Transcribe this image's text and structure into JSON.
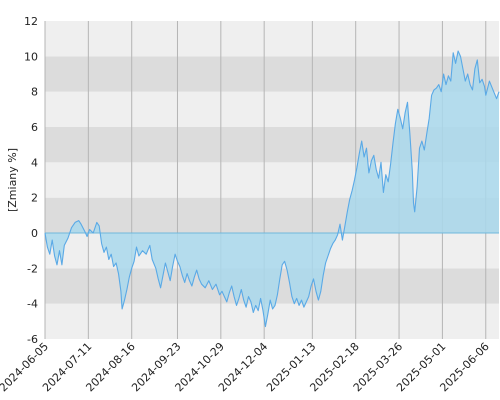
{
  "chart_data": {
    "type": "area",
    "ylabel": "[Zmiany %]",
    "xlabel": "",
    "ylim": [
      -6,
      12
    ],
    "xlim": [
      "2024-06-05",
      "2025-06-17"
    ],
    "y_ticks": [
      -6,
      -4,
      -2,
      0,
      2,
      4,
      6,
      8,
      10,
      12
    ],
    "y_tick_labels": [
      "-6",
      "-4",
      "-2",
      "0",
      "2",
      "4",
      "6",
      "8",
      "10",
      "12"
    ],
    "x_tick_labels": [
      "2024-06-05",
      "2024-07-11",
      "2024-08-16",
      "2024-09-23",
      "2024-10-29",
      "2024-12-04",
      "2025-01-13",
      "2025-02-18",
      "2025-03-26",
      "2025-05-01",
      "2025-06-06"
    ],
    "grid": true,
    "legend": "none",
    "colors": {
      "line": "#5aa9e6",
      "fill": "#a9d8ec",
      "band_light": "#efefef",
      "band_dark": "#dcdcdc",
      "gridline": "#b5b5b5",
      "zero_line": "#6fb8dc"
    },
    "series": [
      {
        "values": [
          [
            "2024-06-05",
            0.0
          ],
          [
            "2024-06-07",
            -0.8
          ],
          [
            "2024-06-09",
            -1.2
          ],
          [
            "2024-06-11",
            -0.4
          ],
          [
            "2024-06-13",
            -1.3
          ],
          [
            "2024-06-15",
            -1.8
          ],
          [
            "2024-06-17",
            -1.0
          ],
          [
            "2024-06-19",
            -1.8
          ],
          [
            "2024-06-21",
            -0.7
          ],
          [
            "2024-06-24",
            -0.3
          ],
          [
            "2024-06-27",
            0.3
          ],
          [
            "2024-06-30",
            0.6
          ],
          [
            "2024-07-03",
            0.7
          ],
          [
            "2024-07-05",
            0.5
          ],
          [
            "2024-07-08",
            0.1
          ],
          [
            "2024-07-10",
            -0.2
          ],
          [
            "2024-07-12",
            0.2
          ],
          [
            "2024-07-15",
            0.0
          ],
          [
            "2024-07-18",
            0.6
          ],
          [
            "2024-07-20",
            0.4
          ],
          [
            "2024-07-22",
            -0.6
          ],
          [
            "2024-07-24",
            -1.1
          ],
          [
            "2024-07-26",
            -0.8
          ],
          [
            "2024-07-28",
            -1.5
          ],
          [
            "2024-07-30",
            -1.2
          ],
          [
            "2024-08-01",
            -1.9
          ],
          [
            "2024-08-03",
            -1.7
          ],
          [
            "2024-08-05",
            -2.3
          ],
          [
            "2024-08-07",
            -3.3
          ],
          [
            "2024-08-08",
            -4.3
          ],
          [
            "2024-08-10",
            -3.8
          ],
          [
            "2024-08-12",
            -3.2
          ],
          [
            "2024-08-14",
            -2.5
          ],
          [
            "2024-08-16",
            -2.0
          ],
          [
            "2024-08-18",
            -1.6
          ],
          [
            "2024-08-20",
            -0.8
          ],
          [
            "2024-08-22",
            -1.3
          ],
          [
            "2024-08-25",
            -1.0
          ],
          [
            "2024-08-28",
            -1.2
          ],
          [
            "2024-08-31",
            -0.7
          ],
          [
            "2024-09-02",
            -1.5
          ],
          [
            "2024-09-05",
            -2.0
          ],
          [
            "2024-09-07",
            -2.6
          ],
          [
            "2024-09-09",
            -3.1
          ],
          [
            "2024-09-11",
            -2.4
          ],
          [
            "2024-09-13",
            -1.7
          ],
          [
            "2024-09-15",
            -2.2
          ],
          [
            "2024-09-17",
            -2.7
          ],
          [
            "2024-09-19",
            -1.9
          ],
          [
            "2024-09-21",
            -1.2
          ],
          [
            "2024-09-23",
            -1.6
          ],
          [
            "2024-09-25",
            -1.9
          ],
          [
            "2024-09-27",
            -2.4
          ],
          [
            "2024-09-29",
            -2.8
          ],
          [
            "2024-10-01",
            -2.3
          ],
          [
            "2024-10-03",
            -2.7
          ],
          [
            "2024-10-05",
            -3.0
          ],
          [
            "2024-10-07",
            -2.5
          ],
          [
            "2024-10-09",
            -2.1
          ],
          [
            "2024-10-11",
            -2.6
          ],
          [
            "2024-10-13",
            -2.9
          ],
          [
            "2024-10-16",
            -3.1
          ],
          [
            "2024-10-19",
            -2.7
          ],
          [
            "2024-10-22",
            -3.2
          ],
          [
            "2024-10-25",
            -2.9
          ],
          [
            "2024-10-28",
            -3.5
          ],
          [
            "2024-10-30",
            -3.3
          ],
          [
            "2024-11-01",
            -3.6
          ],
          [
            "2024-11-03",
            -3.9
          ],
          [
            "2024-11-05",
            -3.4
          ],
          [
            "2024-11-07",
            -3.0
          ],
          [
            "2024-11-09",
            -3.6
          ],
          [
            "2024-11-11",
            -4.1
          ],
          [
            "2024-11-13",
            -3.7
          ],
          [
            "2024-11-15",
            -3.2
          ],
          [
            "2024-11-17",
            -3.8
          ],
          [
            "2024-11-19",
            -4.2
          ],
          [
            "2024-11-21",
            -3.6
          ],
          [
            "2024-11-23",
            -3.9
          ],
          [
            "2024-11-25",
            -4.5
          ],
          [
            "2024-11-27",
            -4.1
          ],
          [
            "2024-11-29",
            -4.4
          ],
          [
            "2024-12-01",
            -3.7
          ],
          [
            "2024-12-03",
            -4.4
          ],
          [
            "2024-12-05",
            -5.3
          ],
          [
            "2024-12-07",
            -4.6
          ],
          [
            "2024-12-09",
            -3.8
          ],
          [
            "2024-12-11",
            -4.3
          ],
          [
            "2024-12-13",
            -4.1
          ],
          [
            "2024-12-15",
            -3.5
          ],
          [
            "2024-12-17",
            -2.6
          ],
          [
            "2024-12-19",
            -1.8
          ],
          [
            "2024-12-21",
            -1.6
          ],
          [
            "2024-12-23",
            -2.1
          ],
          [
            "2024-12-25",
            -2.8
          ],
          [
            "2024-12-27",
            -3.6
          ],
          [
            "2024-12-29",
            -4.0
          ],
          [
            "2024-12-31",
            -3.7
          ],
          [
            "2025-01-02",
            -4.1
          ],
          [
            "2025-01-04",
            -3.8
          ],
          [
            "2025-01-06",
            -4.2
          ],
          [
            "2025-01-08",
            -3.9
          ],
          [
            "2025-01-10",
            -3.6
          ],
          [
            "2025-01-12",
            -3.0
          ],
          [
            "2025-01-14",
            -2.6
          ],
          [
            "2025-01-16",
            -3.3
          ],
          [
            "2025-01-18",
            -3.8
          ],
          [
            "2025-01-20",
            -3.3
          ],
          [
            "2025-01-22",
            -2.4
          ],
          [
            "2025-01-24",
            -1.7
          ],
          [
            "2025-01-26",
            -1.3
          ],
          [
            "2025-01-28",
            -0.9
          ],
          [
            "2025-01-30",
            -0.6
          ],
          [
            "2025-02-01",
            -0.4
          ],
          [
            "2025-02-03",
            -0.1
          ],
          [
            "2025-02-05",
            0.5
          ],
          [
            "2025-02-07",
            -0.4
          ],
          [
            "2025-02-09",
            0.4
          ],
          [
            "2025-02-11",
            1.2
          ],
          [
            "2025-02-13",
            1.9
          ],
          [
            "2025-02-15",
            2.4
          ],
          [
            "2025-02-17",
            3.0
          ],
          [
            "2025-02-19",
            3.7
          ],
          [
            "2025-02-21",
            4.5
          ],
          [
            "2025-02-23",
            5.2
          ],
          [
            "2025-02-25",
            4.3
          ],
          [
            "2025-02-27",
            4.8
          ],
          [
            "2025-03-01",
            3.4
          ],
          [
            "2025-03-03",
            4.1
          ],
          [
            "2025-03-05",
            4.4
          ],
          [
            "2025-03-07",
            3.6
          ],
          [
            "2025-03-09",
            3.1
          ],
          [
            "2025-03-11",
            4.0
          ],
          [
            "2025-03-13",
            2.3
          ],
          [
            "2025-03-15",
            3.3
          ],
          [
            "2025-03-17",
            2.9
          ],
          [
            "2025-03-19",
            3.9
          ],
          [
            "2025-03-21",
            5.1
          ],
          [
            "2025-03-23",
            6.2
          ],
          [
            "2025-03-25",
            7.0
          ],
          [
            "2025-03-27",
            6.5
          ],
          [
            "2025-03-29",
            5.9
          ],
          [
            "2025-03-31",
            6.8
          ],
          [
            "2025-04-02",
            7.4
          ],
          [
            "2025-04-04",
            5.6
          ],
          [
            "2025-04-06",
            3.5
          ],
          [
            "2025-04-07",
            1.7
          ],
          [
            "2025-04-08",
            1.2
          ],
          [
            "2025-04-10",
            2.6
          ],
          [
            "2025-04-12",
            4.8
          ],
          [
            "2025-04-14",
            5.2
          ],
          [
            "2025-04-16",
            4.7
          ],
          [
            "2025-04-18",
            5.6
          ],
          [
            "2025-04-20",
            6.5
          ],
          [
            "2025-04-22",
            7.8
          ],
          [
            "2025-04-24",
            8.1
          ],
          [
            "2025-04-26",
            8.2
          ],
          [
            "2025-04-28",
            8.4
          ],
          [
            "2025-04-30",
            8.0
          ],
          [
            "2025-05-02",
            9.0
          ],
          [
            "2025-05-04",
            8.4
          ],
          [
            "2025-05-06",
            8.9
          ],
          [
            "2025-05-08",
            8.6
          ],
          [
            "2025-05-10",
            10.2
          ],
          [
            "2025-05-12",
            9.6
          ],
          [
            "2025-05-14",
            10.3
          ],
          [
            "2025-05-16",
            10.0
          ],
          [
            "2025-05-18",
            9.3
          ],
          [
            "2025-05-20",
            8.6
          ],
          [
            "2025-05-22",
            9.0
          ],
          [
            "2025-05-24",
            8.4
          ],
          [
            "2025-05-26",
            8.1
          ],
          [
            "2025-05-28",
            9.3
          ],
          [
            "2025-05-30",
            9.8
          ],
          [
            "2025-06-01",
            8.5
          ],
          [
            "2025-06-03",
            8.7
          ],
          [
            "2025-06-05",
            8.3
          ],
          [
            "2025-06-06",
            7.8
          ],
          [
            "2025-06-09",
            8.6
          ],
          [
            "2025-06-12",
            8.1
          ],
          [
            "2025-06-15",
            7.6
          ],
          [
            "2025-06-17",
            8.0
          ]
        ]
      }
    ]
  }
}
